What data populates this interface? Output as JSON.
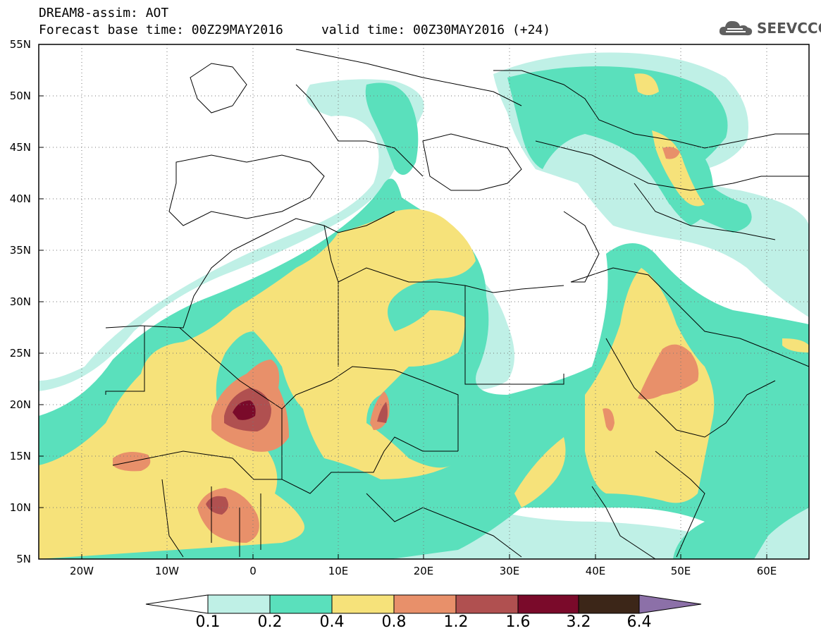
{
  "header": {
    "title_line1": "DREAM8-assim: AOT",
    "title_line2": "Forecast base time: 00Z29MAY2016     valid time: 00Z30MAY2016 (+24)",
    "brand": "SEEVCCC",
    "brand_icon": "cloud-icon"
  },
  "map": {
    "lat_labels": [
      "55N",
      "50N",
      "45N",
      "40N",
      "35N",
      "30N",
      "25N",
      "20N",
      "15N",
      "10N",
      "5N"
    ],
    "lon_labels": [
      "20W",
      "10W",
      "0",
      "10E",
      "20E",
      "30E",
      "40E",
      "50E",
      "60E"
    ]
  },
  "colorbar": {
    "labels": [
      "0.1",
      "0.2",
      "0.4",
      "0.8",
      "1.2",
      "1.6",
      "3.2",
      "6.4"
    ],
    "colors": [
      "#ffffff",
      "#bff0e6",
      "#5ae0bc",
      "#f6e27a",
      "#e8906a",
      "#b05050",
      "#7a0a2a",
      "#3c2618",
      "#8c70a8"
    ]
  }
}
